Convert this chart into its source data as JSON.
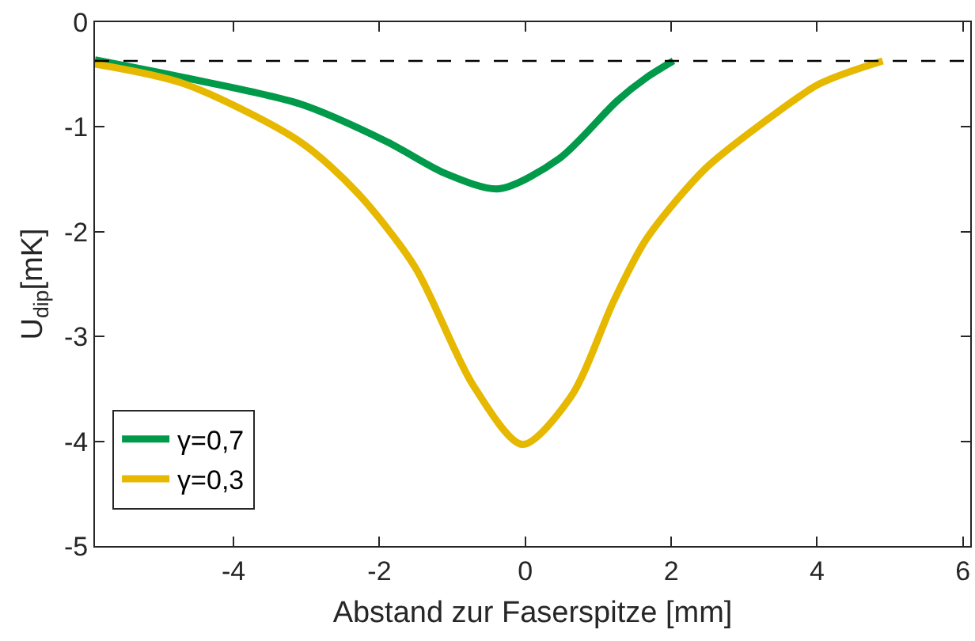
{
  "chart_data": {
    "type": "line",
    "xlabel": "Abstand zur Faserspitze [mm]",
    "ylabel": "U$_{dip}$[mK]",
    "xlim": [
      -5.9,
      6.1
    ],
    "xticks": [
      -4,
      -2,
      0,
      2,
      4,
      6
    ],
    "ylim": [
      -5,
      0
    ],
    "yticks": [
      -5,
      -4,
      -3,
      -2,
      -1,
      0
    ],
    "series": [
      {
        "name": "γ=0,7",
        "color": "#009a4a",
        "x": [
          -5.9,
          -4.67,
          -3.09,
          -1.9,
          -1.11,
          -0.36,
          0.47,
          1.26,
          1.66,
          2.03
        ],
        "values": [
          -0.36,
          -0.53,
          -0.78,
          -1.14,
          -1.44,
          -1.59,
          -1.3,
          -0.75,
          -0.53,
          -0.37
        ]
      },
      {
        "name": "γ=0,3",
        "color": "#e6b800",
        "x": [
          -5.9,
          -4.67,
          -3.09,
          -2.3,
          -1.51,
          -0.72,
          -0.04,
          0.63,
          1.22,
          1.66,
          2.45,
          3.24,
          4.03,
          4.9
        ],
        "values": [
          -0.4,
          -0.59,
          -1.14,
          -1.63,
          -2.34,
          -3.46,
          -4.03,
          -3.57,
          -2.65,
          -2.07,
          -1.41,
          -0.97,
          -0.59,
          -0.37
        ]
      }
    ],
    "ref_lines": [
      {
        "axis": "y",
        "value": -0.37,
        "color": "#000000",
        "line_style": "dashed"
      }
    ],
    "legend": "bottom left",
    "line_style": "solid",
    "marker": "none"
  }
}
